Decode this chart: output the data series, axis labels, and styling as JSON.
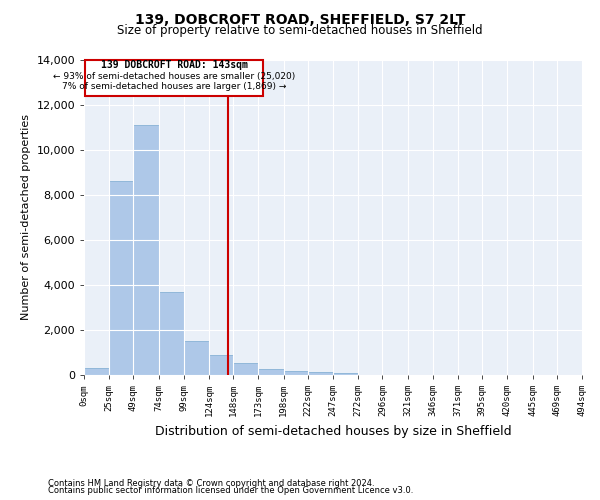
{
  "title": "139, DOBCROFT ROAD, SHEFFIELD, S7 2LT",
  "subtitle": "Size of property relative to semi-detached houses in Sheffield",
  "xlabel": "Distribution of semi-detached houses by size in Sheffield",
  "ylabel": "Number of semi-detached properties",
  "annotation_title": "139 DOBCROFT ROAD: 143sqm",
  "annotation_line1": "← 93% of semi-detached houses are smaller (25,020)",
  "annotation_line2": "7% of semi-detached houses are larger (1,869) →",
  "footer_line1": "Contains HM Land Registry data © Crown copyright and database right 2024.",
  "footer_line2": "Contains public sector information licensed under the Open Government Licence v3.0.",
  "bin_edges": [
    0,
    25,
    49,
    74,
    99,
    124,
    148,
    173,
    198,
    222,
    247,
    272,
    296,
    321,
    346,
    371,
    395,
    420,
    445,
    469,
    494
  ],
  "bar_heights": [
    300,
    8600,
    11100,
    3700,
    1500,
    900,
    550,
    270,
    180,
    130,
    100,
    0,
    0,
    0,
    0,
    0,
    0,
    0,
    0,
    0
  ],
  "bar_color": "#aec8e8",
  "bar_edge_color": "#7aaad0",
  "vline_color": "#cc0000",
  "vline_x": 143,
  "annotation_box_color": "#cc0000",
  "bg_color": "#eaf0f8",
  "grid_color": "#ffffff",
  "ylim": [
    0,
    14000
  ],
  "yticks": [
    0,
    2000,
    4000,
    6000,
    8000,
    10000,
    12000,
    14000
  ]
}
